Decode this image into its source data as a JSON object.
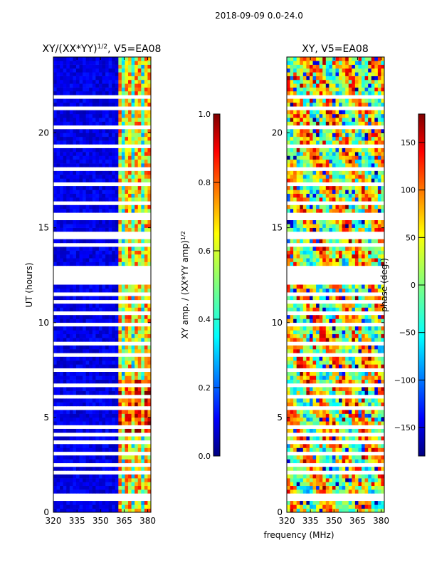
{
  "figure": {
    "suptitle": "2018-09-09 0.0-24.0"
  },
  "chart_data": [
    {
      "type": "heatmap",
      "title_main": "XY/(XX*YY)",
      "title_sup": "1/2",
      "title_tail": ", V5=EA08",
      "xlabel": "",
      "ylabel": "UT (hours)",
      "xlim": [
        320,
        382
      ],
      "ylim": [
        0,
        24
      ],
      "xticks": [
        320,
        335,
        350,
        365,
        380
      ],
      "yticks": [
        0,
        5,
        10,
        15,
        20
      ],
      "colorbar": {
        "label_main": "XY amp. / (XX*YY amp)",
        "label_sup": "1/2",
        "range": [
          0.0,
          1.0
        ],
        "ticks": [
          "0.0",
          "0.2",
          "0.4",
          "0.6",
          "0.8",
          "1.0"
        ],
        "colormap": "jet"
      }
    },
    {
      "type": "heatmap",
      "title": "XY, V5=EA08",
      "xlabel": "frequency (MHz)",
      "ylabel": "",
      "xlim": [
        320,
        382
      ],
      "ylim": [
        0,
        24
      ],
      "xticks": [
        320,
        335,
        350,
        365,
        380
      ],
      "yticks": [
        0,
        5,
        10,
        15,
        20
      ],
      "colorbar": {
        "label": "phase (deg.)",
        "range": [
          -180,
          180
        ],
        "ticks": [
          "150",
          "100",
          "50",
          "0",
          "−50",
          "−100",
          "−150"
        ],
        "colormap": "jet"
      }
    }
  ],
  "colors": {
    "jet": [
      "#00007f",
      "#0000ff",
      "#007fff",
      "#00ffff",
      "#7fff7f",
      "#ffff00",
      "#ff7f00",
      "#ff0000",
      "#7f0000"
    ]
  }
}
